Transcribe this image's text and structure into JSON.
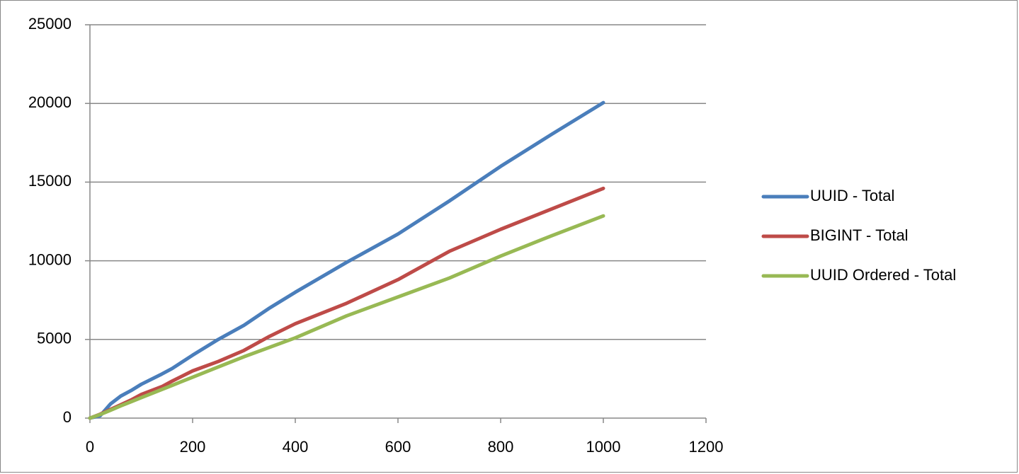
{
  "chart_data": {
    "type": "line",
    "x": [
      0,
      20,
      40,
      60,
      80,
      100,
      140,
      160,
      200,
      250,
      300,
      350,
      400,
      500,
      600,
      700,
      800,
      900,
      1000
    ],
    "series": [
      {
        "name": "UUID - Total",
        "color": "#4a7ebb",
        "values": [
          0,
          150,
          900,
          1400,
          1750,
          2150,
          2800,
          3150,
          4000,
          5000,
          5900,
          7000,
          8000,
          9900,
          11700,
          13800,
          16000,
          18050,
          20050
        ]
      },
      {
        "name": "BIGINT - Total",
        "color": "#be4b48",
        "values": [
          0,
          250,
          550,
          850,
          1150,
          1500,
          2000,
          2350,
          3000,
          3600,
          4300,
          5200,
          6000,
          7300,
          8800,
          10600,
          12000,
          13300,
          14600
        ]
      },
      {
        "name": "UUID Ordered - Total",
        "color": "#98b954",
        "values": [
          0,
          230,
          500,
          780,
          1040,
          1300,
          1820,
          2080,
          2600,
          3250,
          3900,
          4500,
          5100,
          6500,
          7700,
          8900,
          10300,
          11600,
          12850
        ]
      }
    ],
    "xlim": [
      0,
      1200
    ],
    "xticks": [
      0,
      200,
      400,
      600,
      800,
      1000,
      1200
    ],
    "ylim": [
      0,
      25000
    ],
    "yticks": [
      0,
      5000,
      10000,
      15000,
      20000,
      25000
    ],
    "grid": true,
    "legend": "right"
  }
}
